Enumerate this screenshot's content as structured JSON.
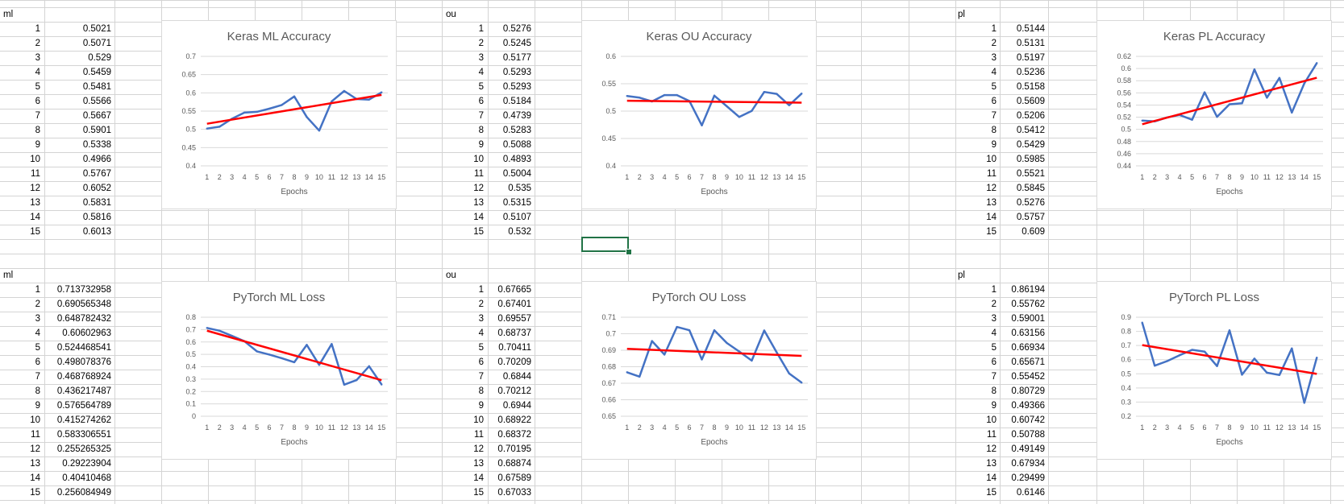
{
  "sheet": {
    "blocks": [
      {
        "label": "ml",
        "rows": [
          "1",
          "2",
          "3",
          "4",
          "5",
          "6",
          "7",
          "8",
          "9",
          "10",
          "11",
          "12",
          "13",
          "14",
          "15"
        ],
        "values": [
          "0.5021",
          "0.5071",
          "0.529",
          "0.5459",
          "0.5481",
          "0.5566",
          "0.5667",
          "0.5901",
          "0.5338",
          "0.4966",
          "0.5767",
          "0.6052",
          "0.5831",
          "0.5816",
          "0.6013"
        ]
      },
      {
        "label": "ou",
        "rows": [
          "1",
          "2",
          "3",
          "4",
          "5",
          "6",
          "7",
          "8",
          "9",
          "10",
          "11",
          "12",
          "13",
          "14",
          "15"
        ],
        "values": [
          "0.5276",
          "0.5245",
          "0.5177",
          "0.5293",
          "0.5293",
          "0.5184",
          "0.4739",
          "0.5283",
          "0.5088",
          "0.4893",
          "0.5004",
          "0.535",
          "0.5315",
          "0.5107",
          "0.532"
        ]
      },
      {
        "label": "pl",
        "rows": [
          "1",
          "2",
          "3",
          "4",
          "5",
          "6",
          "7",
          "8",
          "9",
          "10",
          "11",
          "12",
          "13",
          "14",
          "15"
        ],
        "values": [
          "0.5144",
          "0.5131",
          "0.5197",
          "0.5236",
          "0.5158",
          "0.5609",
          "0.5206",
          "0.5412",
          "0.5429",
          "0.5985",
          "0.5521",
          "0.5845",
          "0.5276",
          "0.5757",
          "0.609"
        ]
      },
      {
        "label": "ml",
        "rows": [
          "1",
          "2",
          "3",
          "4",
          "5",
          "6",
          "7",
          "8",
          "9",
          "10",
          "11",
          "12",
          "13",
          "14",
          "15"
        ],
        "values": [
          "0.713732958",
          "0.690565348",
          "0.648782432",
          "0.60602963",
          "0.524468541",
          "0.498078376",
          "0.468768924",
          "0.436217487",
          "0.576564789",
          "0.415274262",
          "0.583306551",
          "0.255265325",
          "0.29223904",
          "0.40410468",
          "0.256084949"
        ]
      },
      {
        "label": "ou",
        "rows": [
          "1",
          "2",
          "3",
          "4",
          "5",
          "6",
          "7",
          "8",
          "9",
          "10",
          "11",
          "12",
          "13",
          "14",
          "15"
        ],
        "values": [
          "0.67665",
          "0.67401",
          "0.69557",
          "0.68737",
          "0.70411",
          "0.70209",
          "0.6844",
          "0.70212",
          "0.6944",
          "0.68922",
          "0.68372",
          "0.70195",
          "0.68874",
          "0.67589",
          "0.67033"
        ]
      },
      {
        "label": "pl",
        "rows": [
          "1",
          "2",
          "3",
          "4",
          "5",
          "6",
          "7",
          "8",
          "9",
          "10",
          "11",
          "12",
          "13",
          "14",
          "15"
        ],
        "values": [
          "0.86194",
          "0.55762",
          "0.59001",
          "0.63156",
          "0.66934",
          "0.65671",
          "0.55452",
          "0.80729",
          "0.49366",
          "0.60742",
          "0.50788",
          "0.49149",
          "0.67934",
          "0.29499",
          "0.6146"
        ]
      }
    ]
  },
  "chart_data": [
    {
      "type": "line",
      "title": "Keras ML Accuracy",
      "xlabel": "Epochs",
      "ylabel": "",
      "categories": [
        "1",
        "2",
        "3",
        "4",
        "5",
        "6",
        "7",
        "8",
        "9",
        "10",
        "11",
        "12",
        "13",
        "14",
        "15"
      ],
      "series": [
        {
          "name": "ml",
          "values": [
            0.5021,
            0.5071,
            0.529,
            0.5459,
            0.5481,
            0.5566,
            0.5667,
            0.5901,
            0.5338,
            0.4966,
            0.5767,
            0.6052,
            0.5831,
            0.5816,
            0.6013
          ]
        }
      ],
      "trendline": true,
      "ylim": [
        0.4,
        0.7
      ],
      "yticks": [
        "0.4",
        "0.45",
        "0.5",
        "0.55",
        "0.6",
        "0.65",
        "0.7"
      ],
      "colors": {
        "line": "#4472c4",
        "trend": "#ff0000"
      }
    },
    {
      "type": "line",
      "title": "Keras OU Accuracy",
      "xlabel": "Epochs",
      "ylabel": "",
      "categories": [
        "1",
        "2",
        "3",
        "4",
        "5",
        "6",
        "7",
        "8",
        "9",
        "10",
        "11",
        "12",
        "13",
        "14",
        "15"
      ],
      "series": [
        {
          "name": "ou",
          "values": [
            0.5276,
            0.5245,
            0.5177,
            0.5293,
            0.5293,
            0.5184,
            0.4739,
            0.5283,
            0.5088,
            0.4893,
            0.5004,
            0.535,
            0.5315,
            0.5107,
            0.532
          ]
        }
      ],
      "trendline": true,
      "ylim": [
        0.4,
        0.6
      ],
      "yticks": [
        "0.4",
        "0.45",
        "0.5",
        "0.55",
        "0.6"
      ],
      "colors": {
        "line": "#4472c4",
        "trend": "#ff0000"
      }
    },
    {
      "type": "line",
      "title": "Keras PL Accuracy",
      "xlabel": "Epochs",
      "ylabel": "",
      "categories": [
        "1",
        "2",
        "3",
        "4",
        "5",
        "6",
        "7",
        "8",
        "9",
        "10",
        "11",
        "12",
        "13",
        "14",
        "15"
      ],
      "series": [
        {
          "name": "pl",
          "values": [
            0.5144,
            0.5131,
            0.5197,
            0.5236,
            0.5158,
            0.5609,
            0.5206,
            0.5412,
            0.5429,
            0.5985,
            0.5521,
            0.5845,
            0.5276,
            0.5757,
            0.609
          ]
        }
      ],
      "trendline": true,
      "ylim": [
        0.44,
        0.62
      ],
      "yticks": [
        "0.44",
        "0.46",
        "0.48",
        "0.5",
        "0.52",
        "0.54",
        "0.56",
        "0.58",
        "0.6",
        "0.62"
      ],
      "colors": {
        "line": "#4472c4",
        "trend": "#ff0000"
      }
    },
    {
      "type": "line",
      "title": "PyTorch ML Loss",
      "xlabel": "Epochs",
      "ylabel": "",
      "categories": [
        "1",
        "2",
        "3",
        "4",
        "5",
        "6",
        "7",
        "8",
        "9",
        "10",
        "11",
        "12",
        "13",
        "14",
        "15"
      ],
      "series": [
        {
          "name": "ml",
          "values": [
            0.713732958,
            0.690565348,
            0.648782432,
            0.60602963,
            0.524468541,
            0.498078376,
            0.468768924,
            0.436217487,
            0.576564789,
            0.415274262,
            0.583306551,
            0.255265325,
            0.29223904,
            0.40410468,
            0.256084949
          ]
        }
      ],
      "trendline": true,
      "ylim": [
        0,
        0.8
      ],
      "yticks": [
        "0",
        "0.1",
        "0.2",
        "0.3",
        "0.4",
        "0.5",
        "0.6",
        "0.7",
        "0.8"
      ],
      "colors": {
        "line": "#4472c4",
        "trend": "#ff0000"
      }
    },
    {
      "type": "line",
      "title": "PyTorch OU Loss",
      "xlabel": "Epochs",
      "ylabel": "",
      "categories": [
        "1",
        "2",
        "3",
        "4",
        "5",
        "6",
        "7",
        "8",
        "9",
        "10",
        "11",
        "12",
        "13",
        "14",
        "15"
      ],
      "series": [
        {
          "name": "ou",
          "values": [
            0.67665,
            0.67401,
            0.69557,
            0.68737,
            0.70411,
            0.70209,
            0.6844,
            0.70212,
            0.6944,
            0.68922,
            0.68372,
            0.70195,
            0.68874,
            0.67589,
            0.67033
          ]
        }
      ],
      "trendline": true,
      "ylim": [
        0.65,
        0.71
      ],
      "yticks": [
        "0.65",
        "0.66",
        "0.67",
        "0.68",
        "0.69",
        "0.7",
        "0.71"
      ],
      "colors": {
        "line": "#4472c4",
        "trend": "#ff0000"
      }
    },
    {
      "type": "line",
      "title": "PyTorch PL Loss",
      "xlabel": "Epochs",
      "ylabel": "",
      "categories": [
        "1",
        "2",
        "3",
        "4",
        "5",
        "6",
        "7",
        "8",
        "9",
        "10",
        "11",
        "12",
        "13",
        "14",
        "15"
      ],
      "series": [
        {
          "name": "pl",
          "values": [
            0.86194,
            0.55762,
            0.59001,
            0.63156,
            0.66934,
            0.65671,
            0.55452,
            0.80729,
            0.49366,
            0.60742,
            0.50788,
            0.49149,
            0.67934,
            0.29499,
            0.6146
          ]
        }
      ],
      "trendline": true,
      "ylim": [
        0.2,
        0.9
      ],
      "yticks": [
        "0.2",
        "0.3",
        "0.4",
        "0.5",
        "0.6",
        "0.7",
        "0.8",
        "0.9"
      ],
      "colors": {
        "line": "#4472c4",
        "trend": "#ff0000"
      }
    }
  ],
  "colors": {
    "gridline": "#d4d4d4",
    "chart_grid": "#d9d9d9",
    "selection": "#217346"
  }
}
